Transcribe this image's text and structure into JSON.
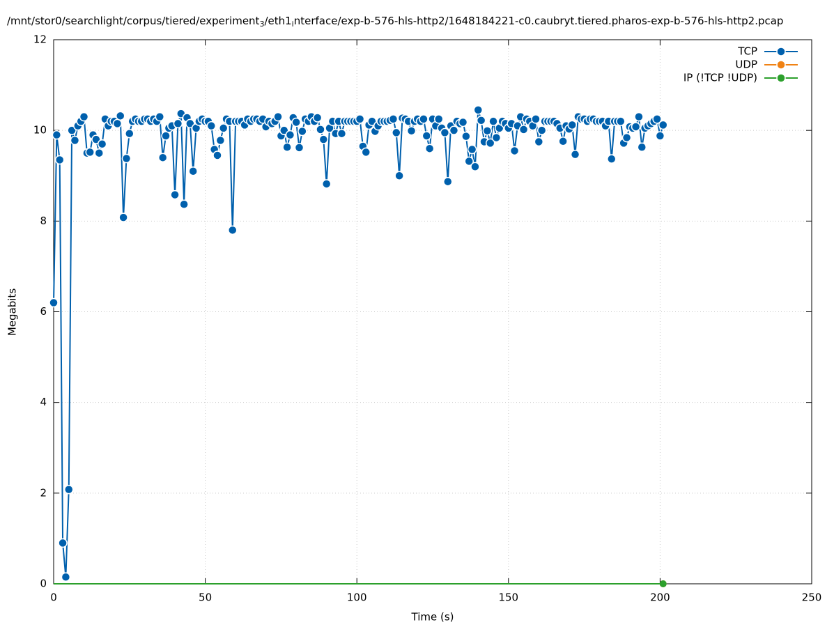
{
  "chart_data": {
    "type": "line",
    "title": "/mnt/stor0/searchlight/corpus/tiered/experiment_3/eth1_interface/exp-b-576-hls-http2/1648184221-c0.caubryt.tiered.pharos-exp-b-576-hls-http2.pcap",
    "xlabel": "Time (s)",
    "ylabel": "Megabits",
    "xlim": [
      0,
      250
    ],
    "xticks": [
      0,
      50,
      100,
      150,
      200,
      250
    ],
    "ylim": [
      0,
      12
    ],
    "yticks": [
      0,
      2,
      4,
      6,
      8,
      10,
      12
    ],
    "grid": true,
    "legend": "top-right",
    "x": [
      0,
      1,
      2,
      3,
      4,
      5,
      6,
      7,
      8,
      9,
      10,
      11,
      12,
      13,
      14,
      15,
      16,
      17,
      18,
      19,
      20,
      21,
      22,
      23,
      24,
      25,
      26,
      27,
      28,
      29,
      30,
      31,
      32,
      33,
      34,
      35,
      36,
      37,
      38,
      39,
      40,
      41,
      42,
      43,
      44,
      45,
      46,
      47,
      48,
      49,
      50,
      51,
      52,
      53,
      54,
      55,
      56,
      57,
      58,
      59,
      60,
      61,
      62,
      63,
      64,
      65,
      66,
      67,
      68,
      69,
      70,
      71,
      72,
      73,
      74,
      75,
      76,
      77,
      78,
      79,
      80,
      81,
      82,
      83,
      84,
      85,
      86,
      87,
      88,
      89,
      90,
      91,
      92,
      93,
      94,
      95,
      96,
      97,
      98,
      99,
      100,
      101,
      102,
      103,
      104,
      105,
      106,
      107,
      108,
      109,
      110,
      111,
      112,
      113,
      114,
      115,
      116,
      117,
      118,
      119,
      120,
      121,
      122,
      123,
      124,
      125,
      126,
      127,
      128,
      129,
      130,
      131,
      132,
      133,
      134,
      135,
      136,
      137,
      138,
      139,
      140,
      141,
      142,
      143,
      144,
      145,
      146,
      147,
      148,
      149,
      150,
      151,
      152,
      153,
      154,
      155,
      156,
      157,
      158,
      159,
      160,
      161,
      162,
      163,
      164,
      165,
      166,
      167,
      168,
      169,
      170,
      171,
      172,
      173,
      174,
      175,
      176,
      177,
      178,
      179,
      180,
      181,
      182,
      183,
      184,
      185,
      186,
      187,
      188,
      189,
      190,
      191,
      192,
      193,
      194,
      195,
      196,
      197,
      198,
      199,
      200,
      201
    ],
    "series": [
      {
        "name": "TCP",
        "color": "#0060ad",
        "markers": "all",
        "values": [
          6.2,
          9.9,
          9.35,
          0.9,
          0.15,
          2.08,
          10.0,
          9.78,
          10.1,
          10.2,
          10.3,
          9.5,
          9.52,
          9.9,
          9.8,
          9.5,
          9.7,
          10.25,
          10.1,
          10.2,
          10.2,
          10.15,
          10.32,
          8.08,
          9.38,
          9.93,
          10.2,
          10.25,
          10.2,
          10.2,
          10.25,
          10.25,
          10.2,
          10.25,
          10.2,
          10.3,
          9.4,
          9.88,
          10.05,
          10.1,
          8.58,
          10.15,
          10.37,
          8.37,
          10.28,
          10.15,
          9.1,
          10.05,
          10.2,
          10.25,
          10.2,
          10.2,
          10.1,
          9.58,
          9.45,
          9.78,
          10.05,
          10.25,
          10.2,
          7.8,
          10.2,
          10.2,
          10.2,
          10.12,
          10.25,
          10.2,
          10.25,
          10.25,
          10.2,
          10.25,
          10.08,
          10.2,
          10.15,
          10.2,
          10.3,
          9.88,
          10.0,
          9.63,
          9.9,
          10.28,
          10.18,
          9.62,
          9.98,
          10.25,
          10.2,
          10.3,
          10.2,
          10.28,
          10.02,
          9.8,
          8.82,
          10.05,
          10.2,
          9.93,
          10.2,
          9.93,
          10.2,
          10.2,
          10.2,
          10.2,
          10.2,
          10.25,
          9.65,
          9.52,
          10.12,
          10.2,
          9.98,
          10.1,
          10.2,
          10.2,
          10.2,
          10.22,
          10.25,
          9.95,
          9.0,
          10.27,
          10.25,
          10.2,
          9.99,
          10.2,
          10.25,
          10.2,
          10.25,
          9.88,
          9.6,
          10.25,
          10.1,
          10.25,
          10.05,
          9.95,
          8.87,
          10.1,
          10.0,
          10.2,
          10.15,
          10.18,
          9.87,
          9.32,
          9.58,
          9.2,
          10.45,
          10.22,
          9.75,
          9.99,
          9.72,
          10.2,
          9.84,
          10.05,
          10.2,
          10.15,
          10.05,
          10.15,
          9.55,
          10.1,
          10.3,
          10.02,
          10.25,
          10.2,
          10.1,
          10.25,
          9.75,
          10.0,
          10.2,
          10.2,
          10.2,
          10.2,
          10.15,
          10.05,
          9.76,
          10.1,
          10.03,
          10.12,
          9.47,
          10.3,
          10.25,
          10.25,
          10.2,
          10.25,
          10.25,
          10.2,
          10.2,
          10.2,
          10.1,
          10.2,
          9.37,
          10.2,
          10.2,
          10.2,
          9.72,
          9.84,
          10.08,
          10.05,
          10.08,
          10.3,
          9.63,
          10.05,
          10.1,
          10.15,
          10.2,
          10.25,
          9.88,
          10.12
        ]
      },
      {
        "name": "UDP",
        "color": "#f08214",
        "markers": "last",
        "values": [
          0,
          0,
          0,
          0,
          0,
          0,
          0,
          0,
          0,
          0,
          0,
          0,
          0,
          0,
          0,
          0,
          0,
          0,
          0,
          0,
          0,
          0,
          0,
          0,
          0,
          0,
          0,
          0,
          0,
          0,
          0,
          0,
          0,
          0,
          0,
          0,
          0,
          0,
          0,
          0,
          0,
          0,
          0,
          0,
          0,
          0,
          0,
          0,
          0,
          0,
          0,
          0,
          0,
          0,
          0,
          0,
          0,
          0,
          0,
          0,
          0,
          0,
          0,
          0,
          0,
          0,
          0,
          0,
          0,
          0,
          0,
          0,
          0,
          0,
          0,
          0,
          0,
          0,
          0,
          0,
          0,
          0,
          0,
          0,
          0,
          0,
          0,
          0,
          0,
          0,
          0,
          0,
          0,
          0,
          0,
          0,
          0,
          0,
          0,
          0,
          0,
          0,
          0,
          0,
          0,
          0,
          0,
          0,
          0,
          0,
          0,
          0,
          0,
          0,
          0,
          0,
          0,
          0,
          0,
          0,
          0,
          0,
          0,
          0,
          0,
          0,
          0,
          0,
          0,
          0,
          0,
          0,
          0,
          0,
          0,
          0,
          0,
          0,
          0,
          0,
          0,
          0,
          0,
          0,
          0,
          0,
          0,
          0,
          0,
          0,
          0,
          0,
          0,
          0,
          0,
          0,
          0,
          0,
          0,
          0,
          0,
          0,
          0,
          0,
          0,
          0,
          0,
          0,
          0,
          0,
          0,
          0,
          0,
          0,
          0,
          0,
          0,
          0,
          0,
          0,
          0,
          0,
          0,
          0,
          0,
          0,
          0,
          0,
          0,
          0,
          0,
          0,
          0,
          0,
          0,
          0,
          0,
          0,
          0,
          0,
          0,
          0
        ]
      },
      {
        "name": "IP (!TCP  !UDP)",
        "color": "#2ca02c",
        "markers": "last",
        "values": [
          0,
          0,
          0,
          0,
          0,
          0,
          0,
          0,
          0,
          0,
          0,
          0,
          0,
          0,
          0,
          0,
          0,
          0,
          0,
          0,
          0,
          0,
          0,
          0,
          0,
          0,
          0,
          0,
          0,
          0,
          0,
          0,
          0,
          0,
          0,
          0,
          0,
          0,
          0,
          0,
          0,
          0,
          0,
          0,
          0,
          0,
          0,
          0,
          0,
          0,
          0,
          0,
          0,
          0,
          0,
          0,
          0,
          0,
          0,
          0,
          0,
          0,
          0,
          0,
          0,
          0,
          0,
          0,
          0,
          0,
          0,
          0,
          0,
          0,
          0,
          0,
          0,
          0,
          0,
          0,
          0,
          0,
          0,
          0,
          0,
          0,
          0,
          0,
          0,
          0,
          0,
          0,
          0,
          0,
          0,
          0,
          0,
          0,
          0,
          0,
          0,
          0,
          0,
          0,
          0,
          0,
          0,
          0,
          0,
          0,
          0,
          0,
          0,
          0,
          0,
          0,
          0,
          0,
          0,
          0,
          0,
          0,
          0,
          0,
          0,
          0,
          0,
          0,
          0,
          0,
          0,
          0,
          0,
          0,
          0,
          0,
          0,
          0,
          0,
          0,
          0,
          0,
          0,
          0,
          0,
          0,
          0,
          0,
          0,
          0,
          0,
          0,
          0,
          0,
          0,
          0,
          0,
          0,
          0,
          0,
          0,
          0,
          0,
          0,
          0,
          0,
          0,
          0,
          0,
          0,
          0,
          0,
          0,
          0,
          0,
          0,
          0,
          0,
          0,
          0,
          0,
          0,
          0,
          0,
          0,
          0,
          0,
          0,
          0,
          0,
          0,
          0,
          0,
          0,
          0,
          0,
          0,
          0,
          0,
          0,
          0,
          0
        ]
      }
    ]
  }
}
